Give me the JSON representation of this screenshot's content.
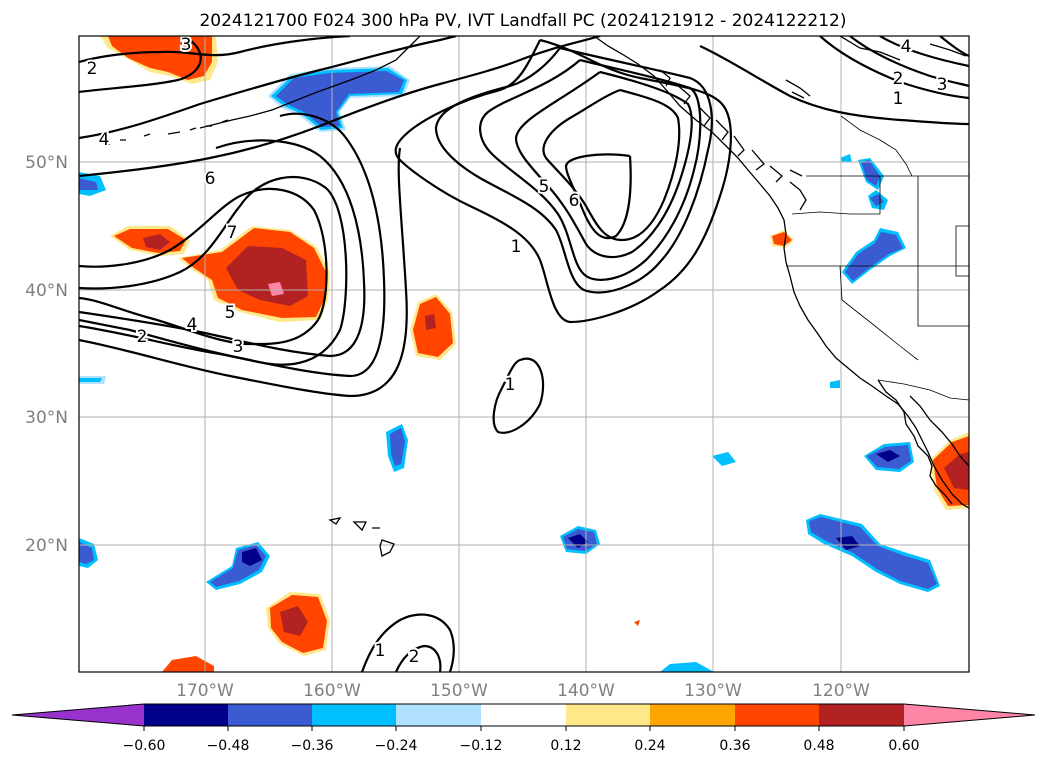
{
  "title": "2024121700 F024 300 hPa PV, IVT Landfall PC (2024121912 - 2024122212)",
  "lat_labels": [
    "50°N",
    "40°N",
    "30°N",
    "20°N"
  ],
  "lon_labels": [
    "170°W",
    "160°W",
    "150°W",
    "140°W",
    "130°W",
    "120°W"
  ],
  "colorbar": {
    "tick_labels": [
      "−0.60",
      "−0.48",
      "−0.36",
      "−0.24",
      "−0.12",
      "0.12",
      "0.24",
      "0.36",
      "0.48",
      "0.60"
    ],
    "colors": [
      "#9932cc",
      "#00008b",
      "#3a5bd1",
      "#00bfff",
      "#b0e2ff",
      "#ffffff",
      "#ffe88a",
      "#ffa500",
      "#ff4500",
      "#b22222",
      "#ff85a7"
    ]
  },
  "contour_labels": [
    "3",
    "2",
    "4",
    "6",
    "7",
    "5",
    "4",
    "3",
    "2",
    "5",
    "6",
    "1",
    "4",
    "3",
    "2",
    "1",
    "1",
    "1",
    "2"
  ],
  "colors": {
    "pv_contour": "#000000",
    "grid": "#b0b0b0",
    "axis_text": "#7f7f7f"
  }
}
